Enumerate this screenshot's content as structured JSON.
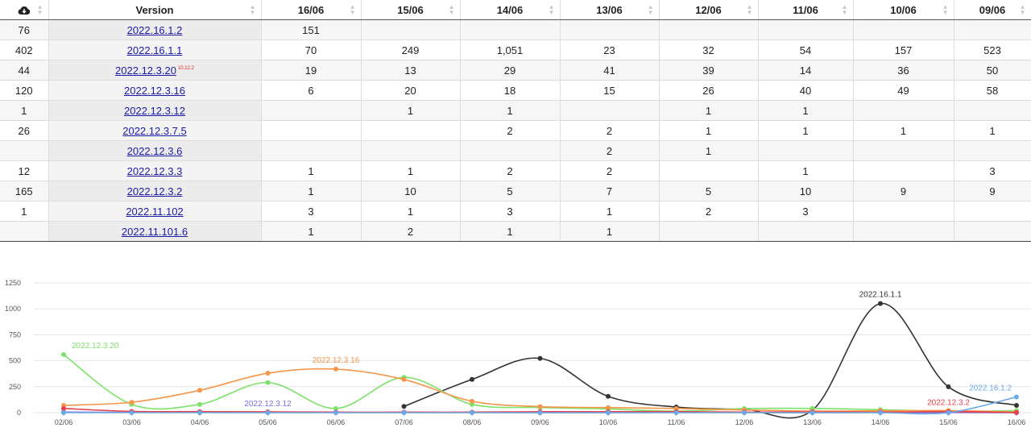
{
  "table": {
    "header": {
      "download_icon": "cloud-download-icon",
      "version_label": "Version",
      "dates": [
        "16/06",
        "15/06",
        "14/06",
        "13/06",
        "12/06",
        "11/06",
        "10/06",
        "09/06"
      ]
    },
    "rows": [
      {
        "total": "76",
        "version": "2022.16.1.2",
        "sup": "",
        "cells": [
          "151",
          "",
          "",
          "",
          "",
          "",
          "",
          ""
        ]
      },
      {
        "total": "402",
        "version": "2022.16.1.1",
        "sup": "",
        "cells": [
          "70",
          "249",
          "1,051",
          "23",
          "32",
          "54",
          "157",
          "523"
        ]
      },
      {
        "total": "44",
        "version": "2022.12.3.20",
        "sup": "10.12.2",
        "cells": [
          "19",
          "13",
          "29",
          "41",
          "39",
          "14",
          "36",
          "50"
        ]
      },
      {
        "total": "120",
        "version": "2022.12.3.16",
        "sup": "",
        "cells": [
          "6",
          "20",
          "18",
          "15",
          "26",
          "40",
          "49",
          "58"
        ]
      },
      {
        "total": "1",
        "version": "2022.12.3.12",
        "sup": "",
        "cells": [
          "",
          "1",
          "1",
          "",
          "1",
          "1",
          "",
          ""
        ]
      },
      {
        "total": "26",
        "version": "2022.12.3.7.5",
        "sup": "",
        "cells": [
          "",
          "",
          "2",
          "2",
          "1",
          "1",
          "1",
          "1"
        ]
      },
      {
        "total": "",
        "version": "2022.12.3.6",
        "sup": "",
        "cells": [
          "",
          "",
          "",
          "2",
          "1",
          "",
          "",
          ""
        ]
      },
      {
        "total": "12",
        "version": "2022.12.3.3",
        "sup": "",
        "cells": [
          "1",
          "1",
          "2",
          "2",
          "",
          "1",
          "",
          "3"
        ]
      },
      {
        "total": "165",
        "version": "2022.12.3.2",
        "sup": "",
        "cells": [
          "1",
          "10",
          "5",
          "7",
          "5",
          "10",
          "9",
          "9"
        ]
      },
      {
        "total": "1",
        "version": "2022.11.102",
        "sup": "",
        "cells": [
          "3",
          "1",
          "3",
          "1",
          "2",
          "3",
          "",
          ""
        ]
      },
      {
        "total": "",
        "version": "2022.11.101.6",
        "sup": "",
        "cells": [
          "1",
          "2",
          "1",
          "1",
          "",
          "",
          "",
          ""
        ]
      }
    ]
  },
  "chart_data": {
    "type": "line",
    "x": [
      "02/06",
      "03/06",
      "04/06",
      "05/06",
      "06/06",
      "07/06",
      "08/06",
      "09/06",
      "10/06",
      "11/06",
      "12/06",
      "13/06",
      "14/06",
      "15/06",
      "16/06"
    ],
    "ylim": [
      0,
      1250
    ],
    "yticks": [
      0,
      250,
      500,
      750,
      1000,
      1250
    ],
    "grid": true,
    "series": [
      {
        "name": "2022.16.1.1",
        "color": "#333333",
        "values": [
          null,
          null,
          null,
          null,
          null,
          60,
          320,
          523,
          157,
          54,
          32,
          23,
          1051,
          249,
          70
        ],
        "label_at": 12
      },
      {
        "name": "2022.12.3.20",
        "color": "#7de26a",
        "values": [
          560,
          80,
          80,
          290,
          40,
          340,
          80,
          50,
          36,
          14,
          39,
          41,
          29,
          13,
          19
        ],
        "label_at": 0
      },
      {
        "name": "2022.12.3.16",
        "color": "#f5964a",
        "values": [
          70,
          100,
          215,
          380,
          420,
          320,
          110,
          58,
          49,
          40,
          26,
          15,
          18,
          20,
          6
        ],
        "label_at": 4
      },
      {
        "name": "2022.12.3.12",
        "color": "#7b6fe0",
        "values": [
          5,
          3,
          2,
          1,
          1,
          1,
          1,
          0,
          0,
          1,
          1,
          0,
          1,
          1,
          0
        ],
        "label_at": 3
      },
      {
        "name": "2022.12.3.2",
        "color": "#e8404a",
        "values": [
          40,
          12,
          10,
          8,
          5,
          5,
          5,
          9,
          9,
          10,
          5,
          7,
          5,
          10,
          1
        ],
        "label_at": 13
      },
      {
        "name": "2022.16.1.2",
        "color": "#6aaae8",
        "values": [
          0,
          0,
          0,
          0,
          0,
          0,
          0,
          0,
          0,
          0,
          0,
          0,
          0,
          0,
          151
        ],
        "label_at": 14
      }
    ]
  }
}
